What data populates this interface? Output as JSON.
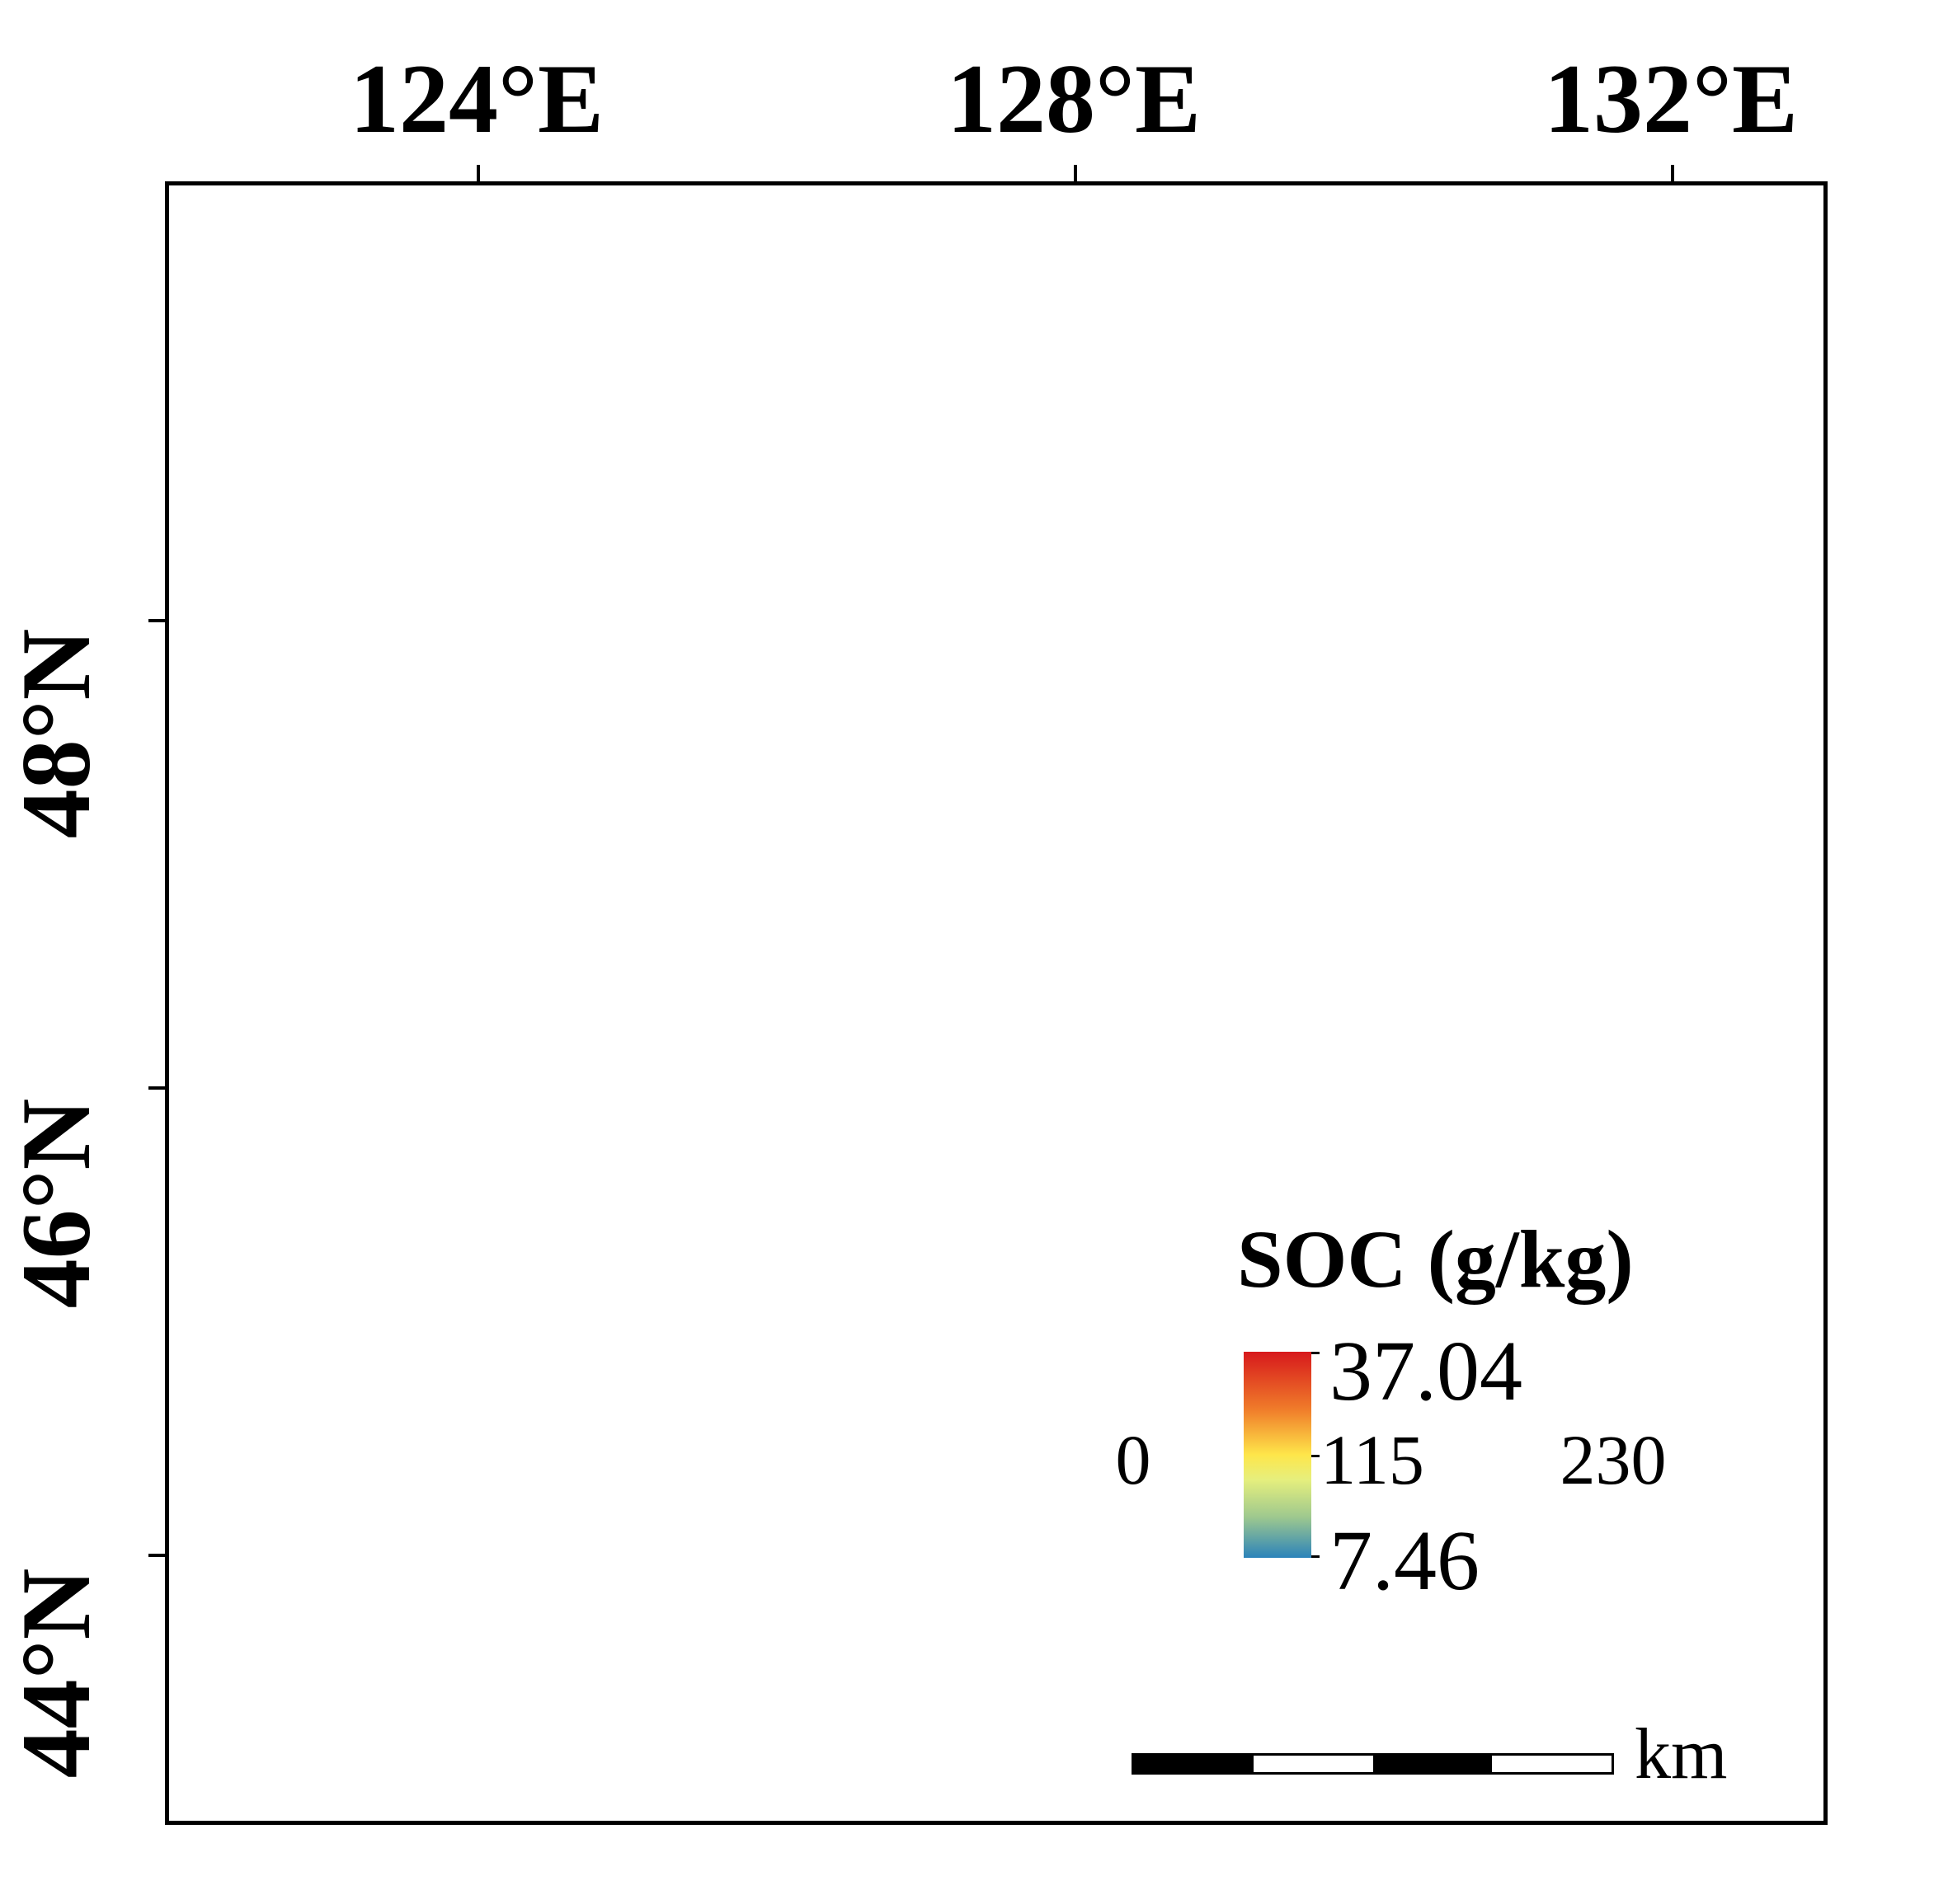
{
  "longitude_labels": [
    "124°E",
    "128°E",
    "132°E"
  ],
  "latitude_labels": [
    "48°N",
    "46°N",
    "44°N"
  ],
  "legend": {
    "title": "SOC (g/kg)",
    "max": "37.04",
    "min": "7.46",
    "colors": [
      "#d7191c",
      "#f07c2a",
      "#fee64a",
      "#e6ef7d",
      "#9fc98e",
      "#2b83ba"
    ]
  },
  "scale_bar": {
    "values": [
      "0",
      "115",
      "230"
    ],
    "unit": "km"
  }
}
